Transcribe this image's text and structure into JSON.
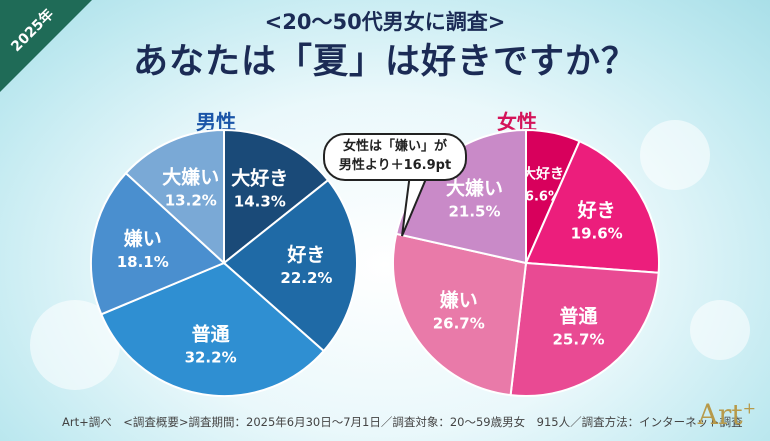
{
  "badge": "2025年",
  "subtitle": "<20～50代男女に調査>",
  "title": "あなたは「夏」は好きですか？",
  "callout": {
    "line1": "女性は「嫌い」が",
    "line2": "男性より＋16.9pt"
  },
  "footnote": "Art+調べ　<調査概要>調査期間：2025年6月30日～7月1日／調査対象：20～59歳男女　915人／調査方法：インターネット調査",
  "logo": "Art",
  "logo_sup": "+",
  "chart_data": [
    {
      "type": "pie",
      "title": "男性",
      "title_color": "#1a55a8",
      "categories": [
        "大好き",
        "好き",
        "普通",
        "嫌い",
        "大嫌い"
      ],
      "values": [
        14.3,
        22.2,
        32.2,
        18.1,
        13.2
      ],
      "value_labels": [
        "14.3%",
        "22.2%",
        "32.2%",
        "18.1%",
        "13.2%"
      ],
      "colors": [
        "#1a4a78",
        "#1f6aa6",
        "#2f8fd2",
        "#4a8fcf",
        "#7aa9d6"
      ]
    },
    {
      "type": "pie",
      "title": "女性",
      "title_color": "#d4145a",
      "categories": [
        "大好き",
        "好き",
        "普通",
        "嫌い",
        "大嫌い"
      ],
      "values": [
        6.6,
        19.6,
        25.7,
        26.7,
        21.5
      ],
      "value_labels": [
        "6.6%",
        "19.6%",
        "25.7%",
        "26.7%",
        "21.5%"
      ],
      "colors": [
        "#d8005c",
        "#ec1e7c",
        "#e94a93",
        "#e97aa9",
        "#c98ac8"
      ]
    }
  ]
}
